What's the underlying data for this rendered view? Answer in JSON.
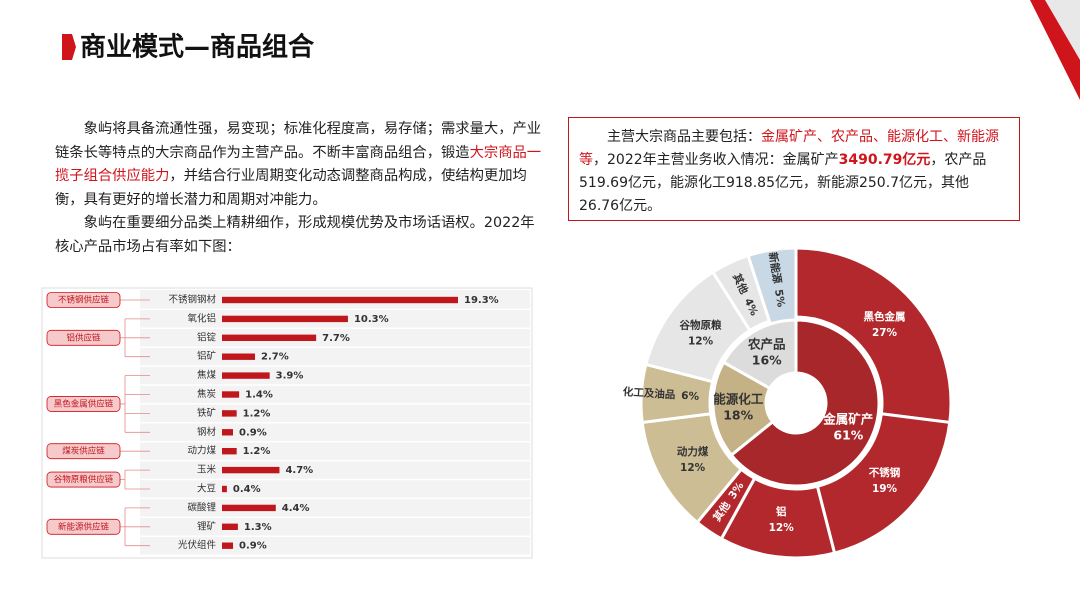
{
  "header": {
    "title": "商业模式—商品组合"
  },
  "intro": [
    [
      "象屿将具备流通性强，易变现；标准化程度高，易存储；需求量大，产业链条长等特点的大宗商品作为主营产品。不断丰富商品组合，锻造",
      "大宗商品一揽子组合供应能力",
      "，并结合行业周期变化动态调整商品构成，使结构更加均衡，具有更好的增长潜力和周期对冲能力。"
    ],
    [
      "象屿在重要细分品类上精耕细作，形成规模优势及市场话语权。2022年核心产品市场占有率如下图："
    ]
  ],
  "summary": [
    "主营大宗商品主要包括：",
    "金属矿产、农产品、能源化工、新能源等",
    "，2022年主营业务收入情况：金属矿产",
    "3490.79亿元",
    "，农产品519.69亿元，能源化工918.85亿元，新能源250.7亿元，其他26.76亿元。"
  ],
  "chart_data": [
    {
      "type": "bar",
      "orientation": "horizontal",
      "color": "#c0171d",
      "xlim": [
        0,
        22
      ],
      "groups": [
        {
          "name": "不锈钢供应链",
          "categories": [
            "不锈钢钢材"
          ],
          "values": [
            19.3
          ],
          "value_labels": [
            "19.3%"
          ]
        },
        {
          "name": "铝供应链",
          "categories": [
            "氧化铝",
            "铝锭",
            "铝矿"
          ],
          "values": [
            10.3,
            7.7,
            2.7
          ],
          "value_labels": [
            "10.3%",
            "7.7%",
            "2.7%"
          ]
        },
        {
          "name": "黑色金属供应链",
          "categories": [
            "焦煤",
            "焦炭",
            "铁矿",
            "钢材"
          ],
          "values": [
            3.9,
            1.4,
            1.2,
            0.9
          ],
          "value_labels": [
            "3.9%",
            "1.4%",
            "1.2%",
            "0.9%"
          ]
        },
        {
          "name": "煤炭供应链",
          "categories": [
            "动力煤"
          ],
          "values": [
            1.2
          ],
          "value_labels": [
            "1.2%"
          ]
        },
        {
          "name": "谷物原粮供应链",
          "categories": [
            "玉米",
            "大豆"
          ],
          "values": [
            4.7,
            0.4
          ],
          "value_labels": [
            "4.7%",
            "0.4%"
          ]
        },
        {
          "name": "新能源供应链",
          "categories": [
            "碳酸锂",
            "锂矿",
            "光伏组件"
          ],
          "values": [
            4.4,
            1.3,
            0.9
          ],
          "value_labels": [
            "4.4%",
            "1.3%",
            "0.9%"
          ]
        }
      ]
    },
    {
      "type": "sunburst",
      "inner": {
        "categories": [
          "金属矿产",
          "能源化工",
          "农产品"
        ],
        "values": [
          61,
          18,
          16
        ],
        "value_labels": [
          "61%",
          "18%",
          "16%"
        ],
        "colors": [
          "#a8272b",
          "#c4b186",
          "#dcdcdc"
        ]
      },
      "outer": {
        "categories": [
          "黑色金属",
          "不锈钢",
          "铝",
          "其他",
          "动力煤",
          "化工及油品",
          "谷物原粮",
          "其他",
          "新能源"
        ],
        "values": [
          27,
          19,
          12,
          3,
          12,
          6,
          12,
          4,
          5
        ],
        "value_labels": [
          "27%",
          "19%",
          "12%",
          "3%",
          "12%",
          "6%",
          "12%",
          "4%",
          "5%"
        ],
        "colors": [
          "#b3282d",
          "#b3282d",
          "#b3282d",
          "#b3282d",
          "#cdbd95",
          "#cdbd95",
          "#e6e6e6",
          "#e6e6e6",
          "#c9d8e5"
        ]
      }
    }
  ]
}
